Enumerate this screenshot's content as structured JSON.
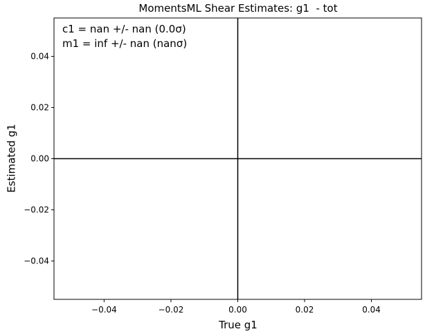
{
  "chart_data": {
    "type": "scatter",
    "title": "MomentsML Shear Estimates: g1  - tot",
    "x_label": "True g1",
    "y_label": "Estimated g1",
    "annotations": [
      "c1 = nan +/- nan (0.0σ)",
      "m1 = inf +/- nan (nanσ)"
    ],
    "x": [],
    "y": [],
    "hlines": [
      0
    ],
    "vlines": [
      0
    ],
    "xlim": [
      -0.055,
      0.055
    ],
    "ylim": [
      -0.055,
      0.055
    ],
    "xticks": [
      {
        "value": -0.04,
        "label": "−0.04"
      },
      {
        "value": -0.02,
        "label": "−0.02"
      },
      {
        "value": 0,
        "label": "0.00"
      },
      0.02,
      0.04
    ],
    "yticks": [
      {
        "value": -0.04,
        "label": "−0.04"
      },
      {
        "value": -0.02,
        "label": "−0.02"
      },
      {
        "value": 0,
        "label": "0.00"
      },
      0.02,
      0.04
    ],
    "color": "#1f77b4"
  }
}
